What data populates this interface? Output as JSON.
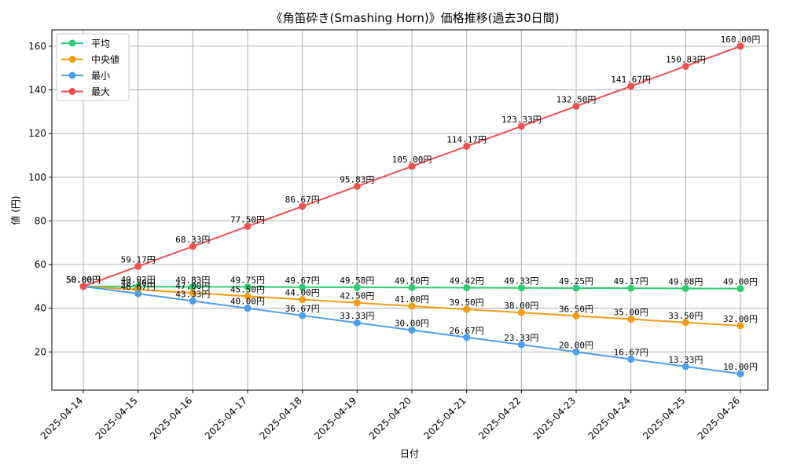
{
  "chart_data": {
    "type": "line",
    "title": "《角笛砕き(Smashing Horn)》価格推移(過去30日間)",
    "xlabel": "日付",
    "ylabel": "値 (円)",
    "value_suffix": "円",
    "grid": true,
    "legend_position": "top-left",
    "ylim": [
      2.5,
      167.5
    ],
    "yticks": [
      20,
      40,
      60,
      80,
      100,
      120,
      140,
      160
    ],
    "categories": [
      "2025-04-14",
      "2025-04-15",
      "2025-04-16",
      "2025-04-17",
      "2025-04-18",
      "2025-04-19",
      "2025-04-20",
      "2025-04-21",
      "2025-04-22",
      "2025-04-23",
      "2025-04-24",
      "2025-04-25",
      "2025-04-26"
    ],
    "series": [
      {
        "name": "平均",
        "color": "#2ecc71",
        "values": [
          50.0,
          49.92,
          49.83,
          49.75,
          49.67,
          49.58,
          49.5,
          49.42,
          49.33,
          49.25,
          49.17,
          49.08,
          49.0
        ]
      },
      {
        "name": "中央値",
        "color": "#f39c12",
        "values": [
          50.0,
          48.5,
          47.0,
          45.5,
          44.0,
          42.5,
          41.0,
          39.5,
          38.0,
          36.5,
          35.0,
          33.5,
          32.0
        ]
      },
      {
        "name": "最小",
        "color": "#4a9ef0",
        "values": [
          50.0,
          46.67,
          43.33,
          40.0,
          36.67,
          33.33,
          30.0,
          26.67,
          23.33,
          20.0,
          16.67,
          13.33,
          10.0
        ]
      },
      {
        "name": "最大",
        "color": "#ef4f4f",
        "values": [
          50.0,
          59.17,
          68.33,
          77.5,
          86.67,
          95.83,
          105.0,
          114.17,
          123.33,
          132.5,
          141.67,
          150.83,
          160.0
        ]
      }
    ]
  }
}
